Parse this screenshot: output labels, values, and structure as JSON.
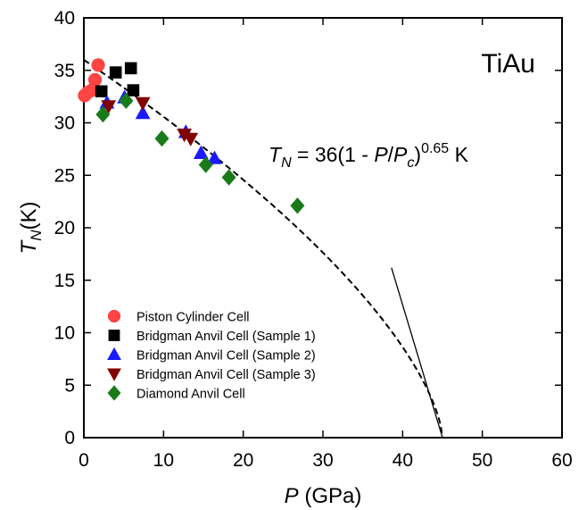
{
  "chart_data": {
    "type": "scatter",
    "title": "",
    "material_label": "TiAu",
    "xlabel": {
      "main": "P",
      "unit": " (GPa)"
    },
    "ylabel": {
      "main": "T",
      "sub": "N",
      "unit": "(K)"
    },
    "xlim": [
      0,
      60
    ],
    "ylim": [
      0,
      40
    ],
    "xticks": [
      0,
      10,
      20,
      30,
      40,
      50,
      60
    ],
    "yticks": [
      0,
      5,
      10,
      15,
      20,
      25,
      30,
      35,
      40
    ],
    "xtick_labels": [
      "0",
      "10",
      "20",
      "30",
      "40",
      "50",
      "60"
    ],
    "ytick_labels": [
      "0",
      "5",
      "10",
      "15",
      "20",
      "25",
      "30",
      "35",
      "40"
    ],
    "grid": false,
    "legend_position": "lower-left",
    "annotation": {
      "lhs_main": "T",
      "lhs_sub": "N",
      "eq": " = 36(1 - ",
      "p": "P",
      "slash": "/",
      "pc_main": "P",
      "pc_sub": "c",
      "close": ")",
      "exponent": "0.65",
      "unit": " K"
    },
    "fit_curve": {
      "formula": "T_N = 36(1 - P/P_c)^0.65",
      "T0": 36,
      "Pc": 45,
      "exponent": 0.65,
      "x_start": 0,
      "x_end": 45,
      "style": "dashed"
    },
    "tangent_line": {
      "x": [
        38.6,
        45
      ],
      "y": [
        16.2,
        0
      ]
    },
    "series": [
      {
        "name": "Piston Cylinder Cell",
        "marker": "circle",
        "color": "#ff4444",
        "x": [
          0.1,
          0.5,
          1.0,
          1.4,
          1.8
        ],
        "y": [
          32.6,
          32.9,
          33.1,
          34.1,
          35.5
        ]
      },
      {
        "name": "Bridgman Anvil Cell (Sample 1)",
        "marker": "square",
        "color": "#000000",
        "x": [
          2.2,
          4.0,
          5.9,
          6.2
        ],
        "y": [
          33.0,
          34.8,
          35.2,
          33.1
        ]
      },
      {
        "name": "Bridgman Anvil Cell (Sample 2)",
        "marker": "triangle-up",
        "color": "#1a1aff",
        "x": [
          2.9,
          5.1,
          7.4,
          12.8,
          14.7,
          16.4
        ],
        "y": [
          31.9,
          32.4,
          30.9,
          29.1,
          27.1,
          26.6
        ]
      },
      {
        "name": "Bridgman Anvil Cell (Sample 3)",
        "marker": "triangle-down",
        "color": "#800000",
        "x": [
          3.1,
          7.4,
          12.6,
          13.4
        ],
        "y": [
          31.6,
          31.9,
          28.9,
          28.5
        ]
      },
      {
        "name": "Diamond Anvil Cell",
        "marker": "diamond",
        "color": "#1a7a1a",
        "x": [
          2.4,
          5.3,
          9.8,
          15.3,
          18.2,
          26.8
        ],
        "y": [
          30.8,
          32.1,
          28.5,
          26.0,
          24.8,
          22.1
        ]
      }
    ]
  }
}
